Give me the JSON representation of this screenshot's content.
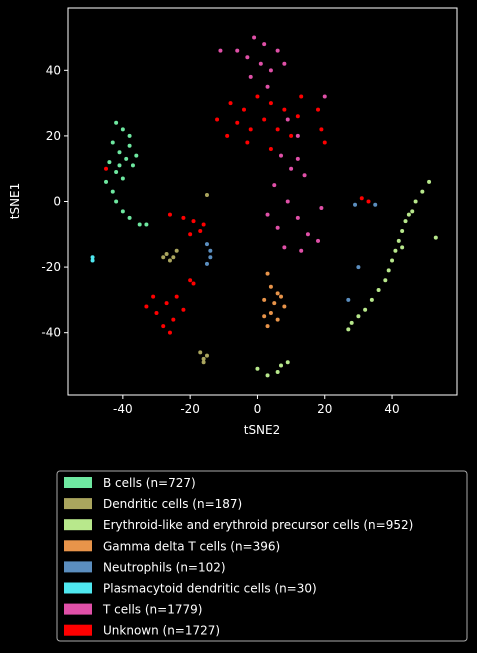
{
  "chart_data": {
    "type": "scatter",
    "xlabel": "tSNE2",
    "ylabel": "tSNE1",
    "xlim": [
      -56.3,
      59.3
    ],
    "ylim": [
      -59,
      59
    ],
    "xticks": [
      -40,
      -20,
      0,
      20,
      40
    ],
    "yticks": [
      -40,
      -20,
      0,
      20,
      40
    ],
    "legend": "below",
    "series": [
      {
        "name": "B cells (n=727)",
        "color": "#6ee8a0",
        "x": [
          -42,
          -40,
          -38,
          -43,
          -41,
          -39,
          -44,
          -37,
          -42,
          -40,
          -45,
          -43,
          -42,
          -40,
          -38,
          -35,
          -33,
          -38,
          -36,
          -41
        ],
        "y": [
          24,
          22,
          20,
          18,
          15,
          13,
          12,
          11,
          9,
          7,
          6,
          3,
          0,
          -3,
          -5,
          -7,
          -7,
          17,
          14,
          11
        ]
      },
      {
        "name": "Dendritic cells (n=187)",
        "color": "#aaa55e",
        "x": [
          -28,
          -27,
          -25,
          -26,
          -24,
          -17,
          -16,
          -15,
          -16,
          -15
        ],
        "y": [
          -17,
          -16,
          -17,
          -18,
          -15,
          -46,
          -48,
          -47,
          -49,
          2
        ]
      },
      {
        "name": "Erythroid-like and erythroid precursor cells (n=952)",
        "color": "#b8e88c",
        "x": [
          51,
          49,
          47,
          46,
          44,
          43,
          42,
          41,
          40,
          39,
          38,
          36,
          34,
          32,
          30,
          28,
          27,
          45,
          43,
          53,
          0,
          3,
          6,
          9,
          7
        ],
        "y": [
          6,
          3,
          0,
          -3,
          -6,
          -9,
          -12,
          -15,
          -18,
          -21,
          -24,
          -27,
          -30,
          -33,
          -35,
          -37,
          -39,
          -4,
          -14,
          -11,
          -51,
          -53,
          -52,
          -49,
          -50
        ]
      },
      {
        "name": "Gamma delta T cells (n=396)",
        "color": "#e8944a",
        "x": [
          3,
          4,
          6,
          2,
          5,
          8,
          4,
          6,
          2,
          7,
          3
        ],
        "y": [
          -22,
          -26,
          -28,
          -30,
          -31,
          -32,
          -34,
          -36,
          -35,
          -29,
          -38
        ]
      },
      {
        "name": "Neutrophils (n=102)",
        "color": "#5b8ebf",
        "x": [
          -15,
          -14,
          -14,
          -15,
          29,
          30,
          27,
          35
        ],
        "y": [
          -13,
          -15,
          -17,
          -19,
          -1,
          -20,
          -30,
          -1
        ]
      },
      {
        "name": "Plasmacytoid dendritic cells (n=30)",
        "color": "#4fe8f0",
        "x": [
          -49,
          -49
        ],
        "y": [
          -17,
          -18
        ]
      },
      {
        "name": "T cells (n=1779)",
        "color": "#e050a8",
        "x": [
          -1,
          2,
          6,
          -3,
          1,
          4,
          8,
          -6,
          -2,
          3,
          20,
          9,
          12,
          7,
          10,
          14,
          5,
          9,
          12,
          6,
          15,
          18,
          8,
          13,
          3,
          19,
          12,
          -11
        ],
        "y": [
          50,
          48,
          46,
          44,
          42,
          40,
          42,
          46,
          38,
          35,
          32,
          25,
          20,
          14,
          10,
          8,
          5,
          0,
          -5,
          -8,
          -10,
          -12,
          -14,
          -15,
          -4,
          -2,
          13,
          46
        ]
      },
      {
        "name": "Unknown (n=1727)",
        "color": "#ff0000",
        "x": [
          -8,
          -4,
          0,
          4,
          8,
          12,
          -6,
          -2,
          2,
          6,
          10,
          -9,
          -3,
          4,
          13,
          18,
          19,
          -12,
          20,
          -27,
          -30,
          -25,
          -22,
          -28,
          -31,
          -24,
          -19,
          -20,
          -26,
          -33,
          -26,
          -22,
          -19,
          -16,
          -20,
          -17,
          -45,
          33,
          31
        ],
        "y": [
          30,
          28,
          32,
          30,
          28,
          26,
          24,
          22,
          25,
          22,
          20,
          20,
          18,
          16,
          32,
          28,
          22,
          25,
          18,
          -31,
          -34,
          -36,
          -33,
          -38,
          -29,
          -29,
          -25,
          -24,
          -40,
          -32,
          -4,
          -5,
          -6,
          -7,
          -10,
          -9,
          10,
          0,
          1
        ]
      }
    ]
  }
}
